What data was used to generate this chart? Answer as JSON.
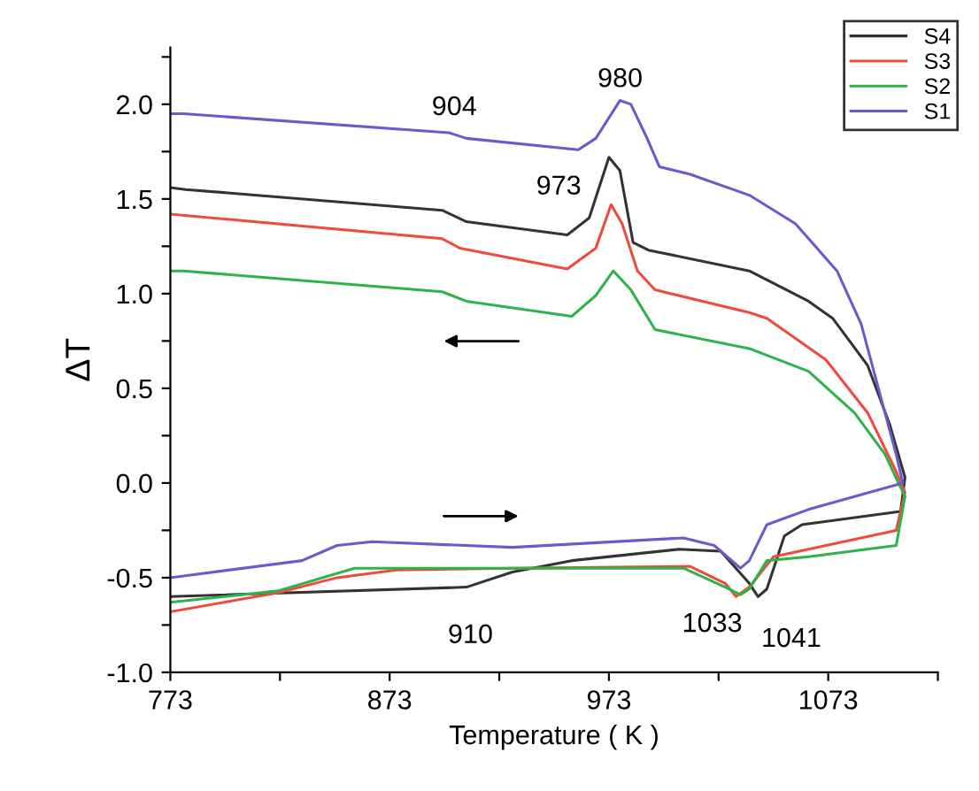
{
  "chart_data": {
    "type": "line",
    "xlabel": "Temperature ( K )",
    "ylabel": "ΔT",
    "xlim": [
      773,
      1123
    ],
    "xticks": [
      773,
      {
        "value": 823,
        "label": null
      },
      873,
      {
        "value": 923,
        "label": null
      },
      973,
      {
        "value": 1023,
        "label": null
      },
      1073,
      {
        "value": 1123,
        "label": null
      }
    ],
    "ylim": [
      -1.0,
      2.3
    ],
    "yticks": [
      {
        "value": -1,
        "label": "-1.0"
      },
      {
        "value": -0.75,
        "label": null
      },
      -0.5,
      {
        "value": -0.25,
        "label": null
      },
      {
        "value": 0,
        "label": "0.0"
      },
      {
        "value": 0.25,
        "label": null
      },
      0.5,
      {
        "value": 0.75,
        "label": null
      },
      {
        "value": 1,
        "label": "1.0"
      },
      {
        "value": 1.25,
        "label": null
      },
      1.5,
      {
        "value": 1.75,
        "label": null
      },
      {
        "value": 2,
        "label": "2.0"
      },
      {
        "value": 2.25,
        "label": null
      }
    ],
    "grid": false,
    "legend": "top right",
    "marker": "none",
    "line_style": "solid",
    "series": [
      {
        "name": "S4",
        "color": "#333333",
        "x": [
          773,
          908,
          929,
          956,
          1005,
          1024,
          1037,
          1041,
          1045,
          1053,
          1061,
          1106,
          1108,
          1101,
          1091,
          1075,
          1064,
          1037,
          991,
          984,
          978,
          973,
          964,
          954,
          908,
          897,
          780,
          773
        ],
        "values": [
          -0.6,
          -0.55,
          -0.47,
          -0.41,
          -0.35,
          -0.36,
          -0.53,
          -0.6,
          -0.56,
          -0.28,
          -0.22,
          -0.15,
          0.03,
          0.31,
          0.62,
          0.87,
          0.96,
          1.12,
          1.23,
          1.27,
          1.65,
          1.72,
          1.4,
          1.31,
          1.38,
          1.44,
          1.55,
          1.56
        ]
      },
      {
        "name": "S3",
        "color": "#f04a3c",
        "x": [
          773,
          822,
          849,
          876,
          929,
          1010,
          1026,
          1031,
          1037,
          1048,
          1064,
          1104,
          1108,
          1104,
          1091,
          1072,
          1045,
          1037,
          994,
          986,
          979,
          974,
          967,
          954,
          905,
          897,
          773
        ],
        "values": [
          -0.68,
          -0.58,
          -0.5,
          -0.46,
          -0.45,
          -0.44,
          -0.53,
          -0.6,
          -0.55,
          -0.39,
          -0.35,
          -0.25,
          -0.05,
          0.06,
          0.37,
          0.65,
          0.87,
          0.9,
          1.02,
          1.12,
          1.37,
          1.47,
          1.24,
          1.13,
          1.24,
          1.29,
          1.42
        ]
      },
      {
        "name": "S2",
        "color": "#2db34a",
        "x": [
          773,
          822,
          857,
          929,
          1007,
          1026,
          1033,
          1037,
          1045,
          1064,
          1104,
          1108,
          1105,
          1099,
          1085,
          1064,
          1037,
          994,
          983,
          975,
          967,
          956,
          908,
          897,
          779,
          773
        ],
        "values": [
          -0.63,
          -0.57,
          -0.45,
          -0.45,
          -0.45,
          -0.55,
          -0.59,
          -0.56,
          -0.41,
          -0.39,
          -0.33,
          -0.07,
          0.0,
          0.15,
          0.37,
          0.59,
          0.71,
          0.81,
          1.02,
          1.12,
          0.99,
          0.88,
          0.96,
          1.01,
          1.12,
          1.12
        ]
      },
      {
        "name": "S1",
        "color": "#6a5acd",
        "x": [
          773,
          833,
          849,
          865,
          929,
          1007,
          1021,
          1033,
          1037,
          1045,
          1064,
          1104,
          1107,
          1104,
          1088,
          1077,
          1058,
          1037,
          1010,
          996,
          990,
          983,
          978,
          967,
          959,
          908,
          900,
          779,
          773
        ],
        "values": [
          -0.5,
          -0.41,
          -0.33,
          -0.31,
          -0.34,
          -0.29,
          -0.33,
          -0.45,
          -0.41,
          -0.22,
          -0.14,
          -0.01,
          0.0,
          0.15,
          0.84,
          1.12,
          1.37,
          1.52,
          1.63,
          1.67,
          1.83,
          2.0,
          2.02,
          1.82,
          1.76,
          1.82,
          1.85,
          1.95,
          1.95
        ]
      }
    ],
    "annotations": [
      "904",
      "980",
      "973",
      "910",
      "1033",
      "1041"
    ]
  }
}
